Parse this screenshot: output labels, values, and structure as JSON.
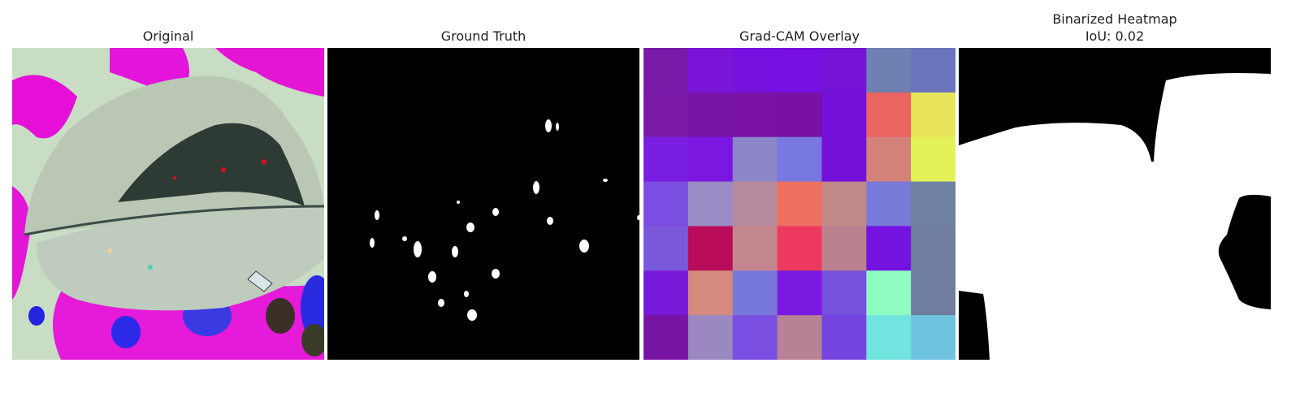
{
  "panels": {
    "original": {
      "title": "Original"
    },
    "ground_truth": {
      "title": "Ground Truth"
    },
    "gradcam": {
      "title": "Grad-CAM Overlay",
      "grid_colors": [
        [
          "#7a1aa8",
          "#7a14d6",
          "#7612df",
          "#7610e3",
          "#7412d6",
          "#6f80b2",
          "#6a74bd"
        ],
        [
          "#7b18a6",
          "#7a13a7",
          "#7a12a6",
          "#7a10a4",
          "#7410d8",
          "#ea6462",
          "#e8e45c"
        ],
        [
          "#7a1ee2",
          "#7a18e2",
          "#8a86c8",
          "#7878e0",
          "#7410d8",
          "#d3827a",
          "#e4f25a"
        ],
        [
          "#7a4ee0",
          "#9a8cc4",
          "#b68a9c",
          "#ee7060",
          "#c08a8a",
          "#7a7ad8",
          "#6f80a2"
        ],
        [
          "#7a58da",
          "#b80c5a",
          "#c4868e",
          "#ee3a5e",
          "#ba8290",
          "#7412e0",
          "#6f7ea0"
        ],
        [
          "#7818d8",
          "#d48a7e",
          "#7878da",
          "#7a1ae0",
          "#7452dc",
          "#8efcc0",
          "#6f7ea0"
        ],
        [
          "#7814a4",
          "#9a88c0",
          "#7a4ee0",
          "#b88296",
          "#7644df",
          "#72e4e0",
          "#6ec4e0"
        ]
      ]
    },
    "binarized": {
      "title_line1": "Binarized Heatmap",
      "title_line2": "IoU: 0.02"
    }
  }
}
